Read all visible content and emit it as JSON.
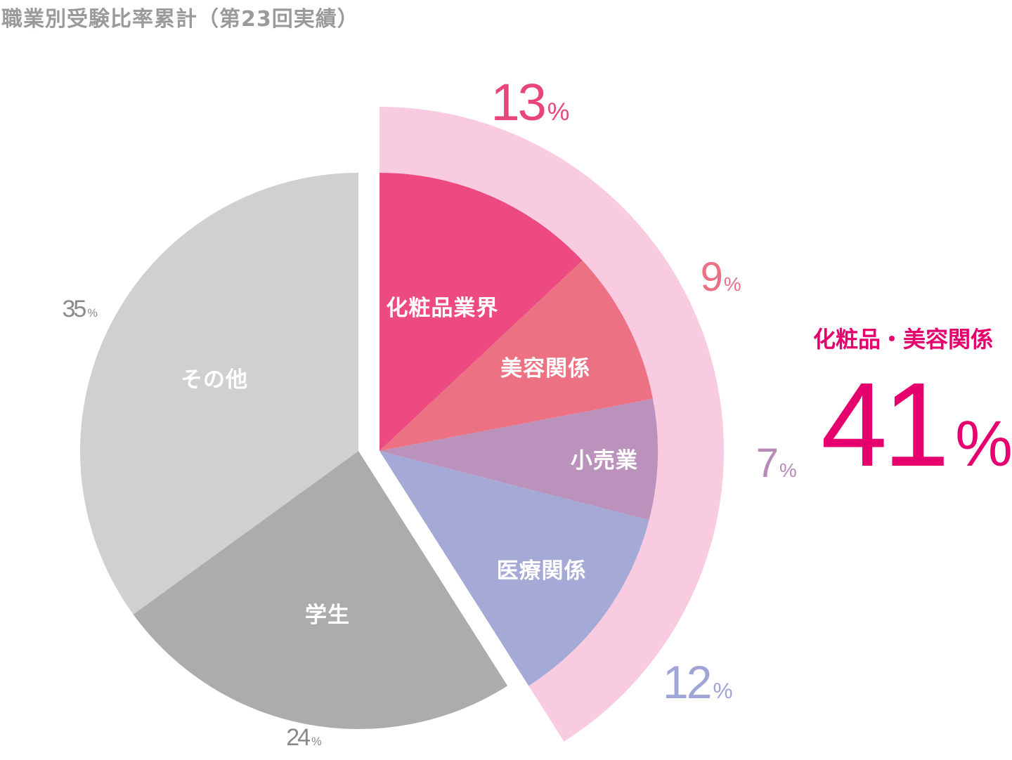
{
  "chart_data": {
    "type": "pie",
    "title": "職業別受験比率累計（第23回実績）",
    "unit": "%",
    "slices": [
      {
        "label": "化粧品業界",
        "value": 13,
        "color": "#ec4a81",
        "value_color": "#e8457c"
      },
      {
        "label": "美容関係",
        "value": 9,
        "color": "#ec7283",
        "value_color": "#ec7083"
      },
      {
        "label": "小売業",
        "value": 7,
        "color": "#ba92bb",
        "value_color": "#b98ab9"
      },
      {
        "label": "医療関係",
        "value": 12,
        "color": "#a5a9d6",
        "value_color": "#9fa5d6"
      },
      {
        "label": "学生",
        "value": 24,
        "color": "#acacac",
        "value_color": "#8a8a8a"
      },
      {
        "label": "その他",
        "value": 35,
        "color": "#d0d0d0",
        "value_color": "#8a8a8a"
      }
    ],
    "highlight_group": {
      "label": "化粧品・美容関係",
      "value": 41,
      "band_color": "#f8cbe0",
      "text_color": "#e6006e"
    }
  }
}
